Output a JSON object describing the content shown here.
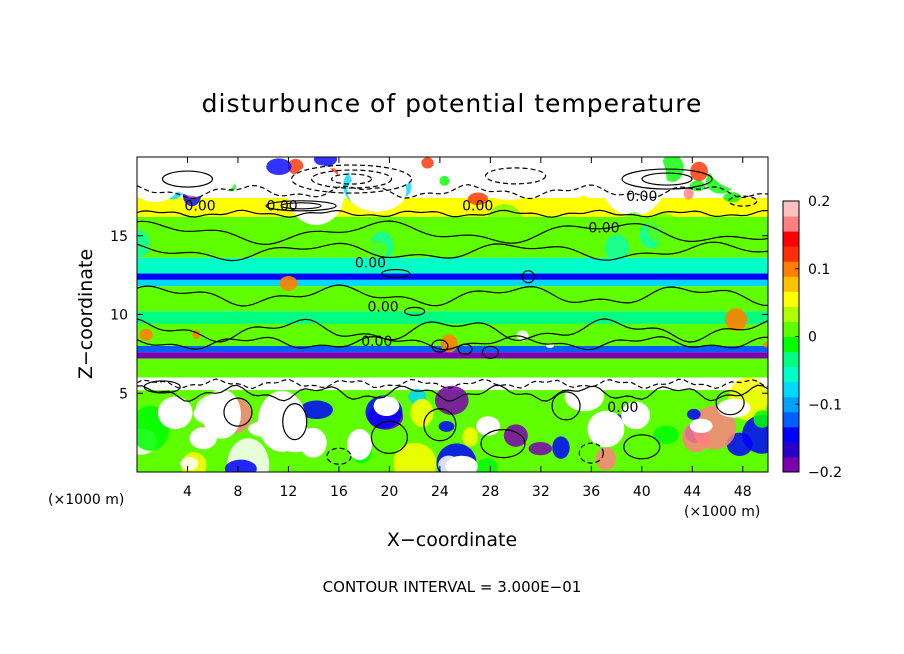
{
  "chart_data": {
    "type": "heatmap",
    "title": "disturbunce of potential temperature",
    "xlabel": "X−coordinate",
    "ylabel": "Z−coordinate",
    "x_unit": "(×1000 m)",
    "y_unit": "(×1000 m)",
    "xlim": [
      0,
      50
    ],
    "ylim": [
      0,
      20
    ],
    "x_ticks": [
      4,
      8,
      12,
      16,
      20,
      24,
      28,
      32,
      36,
      40,
      44,
      48
    ],
    "x_tick_labels": [
      "4",
      "8",
      "12",
      "16",
      "20",
      "24",
      "28",
      "32",
      "36",
      "40",
      "44",
      "48"
    ],
    "y_ticks": [
      5,
      10,
      15
    ],
    "y_tick_labels": [
      "5",
      "10",
      "15"
    ],
    "colorbar": {
      "min": -0.2,
      "max": 0.2,
      "ticks": [
        0.2,
        0.1,
        0,
        -0.1,
        -0.2
      ],
      "tick_labels": [
        "0.2",
        "0.1",
        "0",
        "−0.1",
        "−0.2"
      ],
      "colors": [
        "#7a00b0",
        "#2a00c8",
        "#0000ff",
        "#0060ff",
        "#00a0ff",
        "#00d8ff",
        "#00ffc8",
        "#00ff80",
        "#00ff00",
        "#60ff00",
        "#b0ff00",
        "#ffff00",
        "#ffc000",
        "#ff8000",
        "#ff3000",
        "#ff0000",
        "#ff8080",
        "#ffc0c0"
      ]
    },
    "bands": [
      {
        "z": [
          17.4,
          20.0
        ],
        "value": 0.25
      },
      {
        "z": [
          16.2,
          17.4
        ],
        "value": 0.05
      },
      {
        "z": [
          13.6,
          16.2
        ],
        "value": 0.0
      },
      {
        "z": [
          12.6,
          13.6
        ],
        "value": -0.06
      },
      {
        "z": [
          12.2,
          12.6
        ],
        "value": -0.14
      },
      {
        "z": [
          11.8,
          12.2
        ],
        "value": -0.08
      },
      {
        "z": [
          10.2,
          11.8
        ],
        "value": 0.0
      },
      {
        "z": [
          9.4,
          10.2
        ],
        "value": -0.04
      },
      {
        "z": [
          8.0,
          9.4
        ],
        "value": 0.0
      },
      {
        "z": [
          7.6,
          8.0
        ],
        "value": -0.12
      },
      {
        "z": [
          7.2,
          7.6
        ],
        "value": -0.19
      },
      {
        "z": [
          6.0,
          7.2
        ],
        "value": 0.0
      },
      {
        "z": [
          5.2,
          6.0
        ],
        "value": 0.25
      },
      {
        "z": [
          0.0,
          5.2
        ],
        "value": 0.02
      }
    ],
    "contour_labels": [
      {
        "x": 5.0,
        "z": 16.6,
        "text": "0.00"
      },
      {
        "x": 11.5,
        "z": 16.6,
        "text": "0.00"
      },
      {
        "x": 18.5,
        "z": 13.0,
        "text": "0.00"
      },
      {
        "x": 19.5,
        "z": 10.2,
        "text": "0.00"
      },
      {
        "x": 19.0,
        "z": 8.0,
        "text": "0.00"
      },
      {
        "x": 27.0,
        "z": 16.6,
        "text": "0.00"
      },
      {
        "x": 37.0,
        "z": 15.2,
        "text": "0.00"
      },
      {
        "x": 40.0,
        "z": 17.2,
        "text": "0.00"
      },
      {
        "x": 38.5,
        "z": 3.8,
        "text": "0.00"
      }
    ],
    "contour_interval": "CONTOUR INTERVAL = 3.000E−01"
  }
}
